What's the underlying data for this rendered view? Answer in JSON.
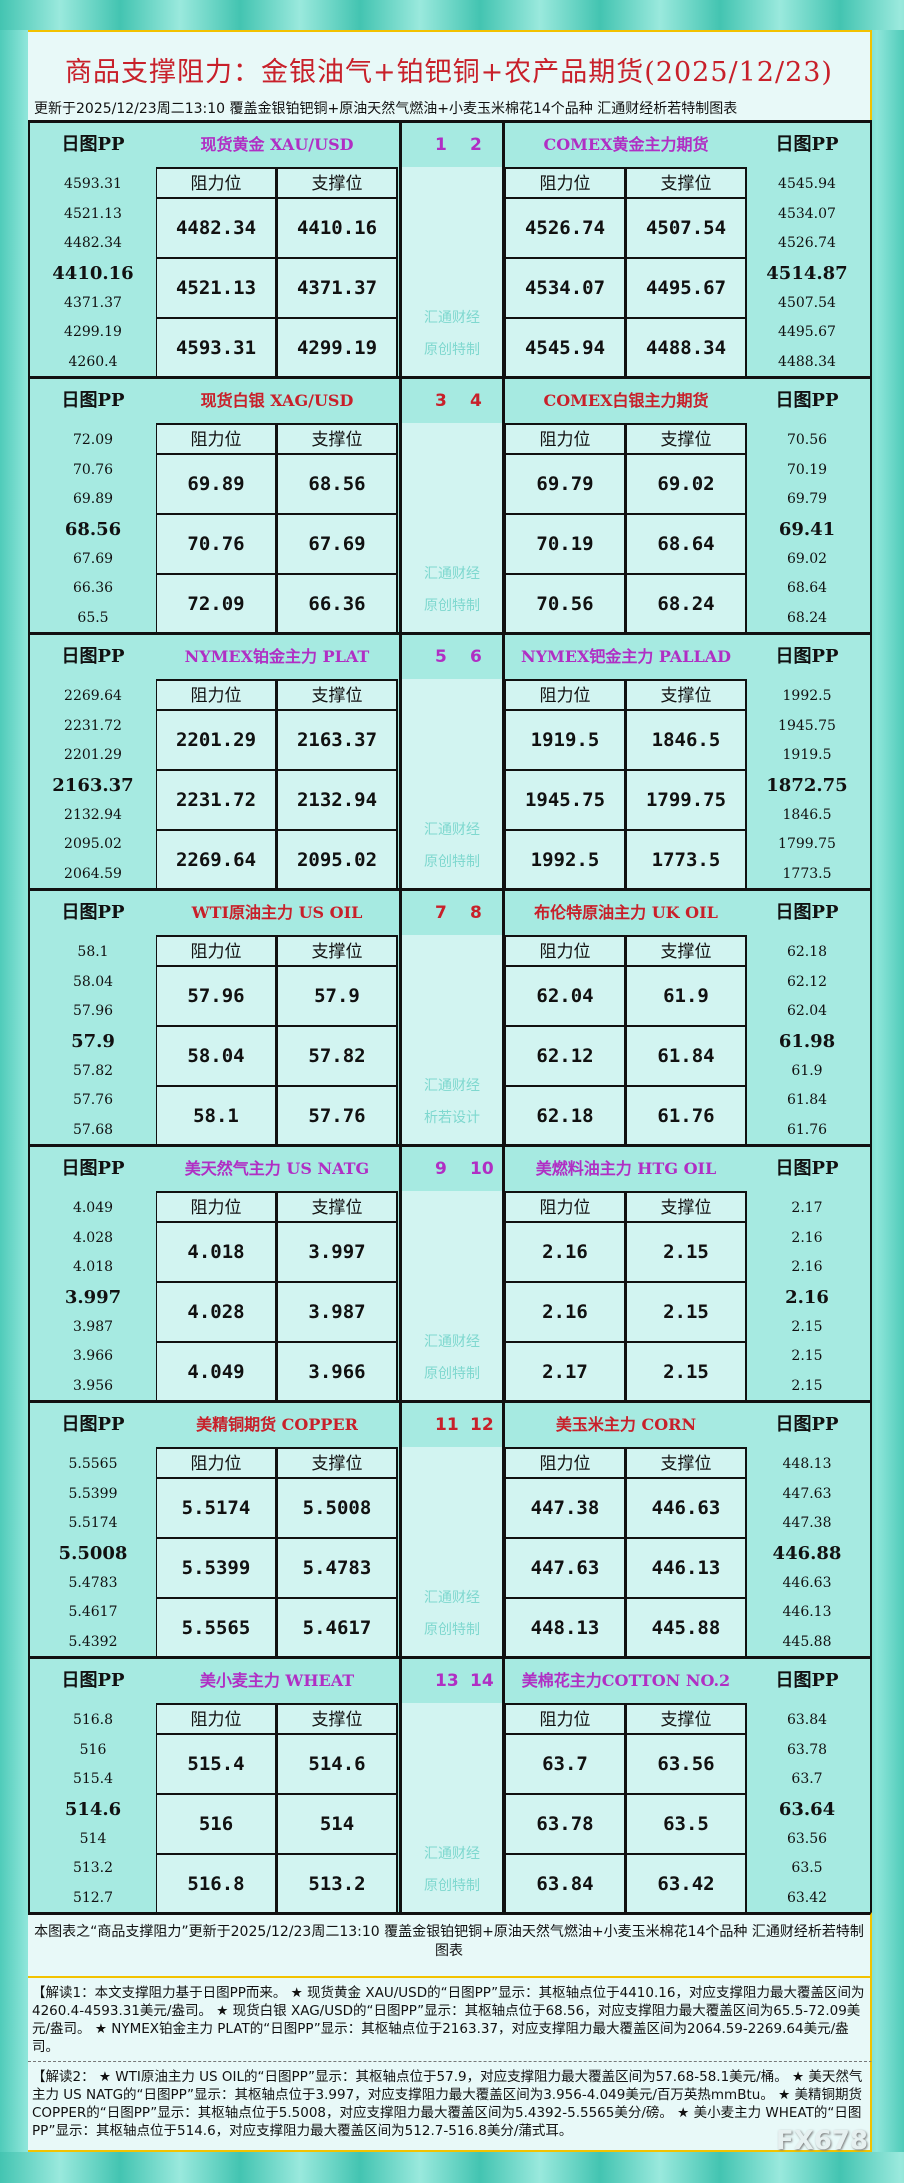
{
  "header": {
    "title": "商品支撑阻力：金银油气+铂钯铜+农产品期货(2025/12/23)",
    "subtitle": "更新于2025/12/23周二13:10 覆盖金银铂钯铜+原油天然气燃油+小麦玉米棉花14个品种 汇通财经析若特制图表"
  },
  "labels": {
    "pp": "日图PP",
    "resist": "阻力位",
    "support": "支撑位"
  },
  "colors": {
    "purple": "#b02fc4",
    "red": "#c8202a"
  },
  "sections": [
    {
      "watermark": [
        "汇通财经",
        "原创特制"
      ],
      "left": {
        "no": "1",
        "name": "现货黄金 XAU/USD",
        "color": "purple",
        "pp": [
          "4593.31",
          "4521.13",
          "4482.34",
          "4410.16",
          "4371.37",
          "4299.19",
          "4260.4"
        ],
        "resist": [
          "4482.34",
          "4521.13",
          "4593.31"
        ],
        "support": [
          "4410.16",
          "4371.37",
          "4299.19"
        ]
      },
      "right": {
        "no": "2",
        "name": "COMEX黄金主力期货",
        "color": "purple",
        "pp": [
          "4545.94",
          "4534.07",
          "4526.74",
          "4514.87",
          "4507.54",
          "4495.67",
          "4488.34"
        ],
        "resist": [
          "4526.74",
          "4534.07",
          "4545.94"
        ],
        "support": [
          "4507.54",
          "4495.67",
          "4488.34"
        ]
      }
    },
    {
      "watermark": [
        "汇通财经",
        "原创特制"
      ],
      "left": {
        "no": "3",
        "name": "现货白银 XAG/USD",
        "color": "red",
        "pp": [
          "72.09",
          "70.76",
          "69.89",
          "68.56",
          "67.69",
          "66.36",
          "65.5"
        ],
        "resist": [
          "69.89",
          "70.76",
          "72.09"
        ],
        "support": [
          "68.56",
          "67.69",
          "66.36"
        ]
      },
      "right": {
        "no": "4",
        "name": "COMEX白银主力期货",
        "color": "red",
        "pp": [
          "70.56",
          "70.19",
          "69.79",
          "69.41",
          "69.02",
          "68.64",
          "68.24"
        ],
        "resist": [
          "69.79",
          "70.19",
          "70.56"
        ],
        "support": [
          "69.02",
          "68.64",
          "68.24"
        ]
      }
    },
    {
      "watermark": [
        "汇通财经",
        "原创特制"
      ],
      "left": {
        "no": "5",
        "name": "NYMEX铂金主力 PLAT",
        "color": "purple",
        "pp": [
          "2269.64",
          "2231.72",
          "2201.29",
          "2163.37",
          "2132.94",
          "2095.02",
          "2064.59"
        ],
        "resist": [
          "2201.29",
          "2231.72",
          "2269.64"
        ],
        "support": [
          "2163.37",
          "2132.94",
          "2095.02"
        ]
      },
      "right": {
        "no": "6",
        "name": "NYMEX钯金主力 PALLAD",
        "color": "purple",
        "pp": [
          "1992.5",
          "1945.75",
          "1919.5",
          "1872.75",
          "1846.5",
          "1799.75",
          "1773.5"
        ],
        "resist": [
          "1919.5",
          "1945.75",
          "1992.5"
        ],
        "support": [
          "1846.5",
          "1799.75",
          "1773.5"
        ]
      }
    },
    {
      "watermark": [
        "汇通财经",
        "析若设计"
      ],
      "left": {
        "no": "7",
        "name": "WTI原油主力 US OIL",
        "color": "red",
        "pp": [
          "58.1",
          "58.04",
          "57.96",
          "57.9",
          "57.82",
          "57.76",
          "57.68"
        ],
        "resist": [
          "57.96",
          "58.04",
          "58.1"
        ],
        "support": [
          "57.9",
          "57.82",
          "57.76"
        ]
      },
      "right": {
        "no": "8",
        "name": "布伦特原油主力 UK OIL",
        "color": "red",
        "pp": [
          "62.18",
          "62.12",
          "62.04",
          "61.98",
          "61.9",
          "61.84",
          "61.76"
        ],
        "resist": [
          "62.04",
          "62.12",
          "62.18"
        ],
        "support": [
          "61.9",
          "61.84",
          "61.76"
        ]
      }
    },
    {
      "watermark": [
        "汇通财经",
        "原创特制"
      ],
      "left": {
        "no": "9",
        "name": "美天然气主力 US NATG",
        "color": "purple",
        "pp": [
          "4.049",
          "4.028",
          "4.018",
          "3.997",
          "3.987",
          "3.966",
          "3.956"
        ],
        "resist": [
          "4.018",
          "4.028",
          "4.049"
        ],
        "support": [
          "3.997",
          "3.987",
          "3.966"
        ]
      },
      "right": {
        "no": "10",
        "name": "美燃料油主力 HTG OIL",
        "color": "purple",
        "pp": [
          "2.17",
          "2.16",
          "2.16",
          "2.16",
          "2.15",
          "2.15",
          "2.15"
        ],
        "resist": [
          "2.16",
          "2.16",
          "2.17"
        ],
        "support": [
          "2.15",
          "2.15",
          "2.15"
        ]
      }
    },
    {
      "watermark": [
        "汇通财经",
        "原创特制"
      ],
      "left": {
        "no": "11",
        "name": "美精铜期货 COPPER",
        "color": "red",
        "pp": [
          "5.5565",
          "5.5399",
          "5.5174",
          "5.5008",
          "5.4783",
          "5.4617",
          "5.4392"
        ],
        "resist": [
          "5.5174",
          "5.5399",
          "5.5565"
        ],
        "support": [
          "5.5008",
          "5.4783",
          "5.4617"
        ]
      },
      "right": {
        "no": "12",
        "name": "美玉米主力 CORN",
        "color": "red",
        "pp": [
          "448.13",
          "447.63",
          "447.38",
          "446.88",
          "446.63",
          "446.13",
          "445.88"
        ],
        "resist": [
          "447.38",
          "447.63",
          "448.13"
        ],
        "support": [
          "446.63",
          "446.13",
          "445.88"
        ]
      }
    },
    {
      "watermark": [
        "汇通财经",
        "原创特制"
      ],
      "left": {
        "no": "13",
        "name": "美小麦主力 WHEAT",
        "color": "purple",
        "pp": [
          "516.8",
          "516",
          "515.4",
          "514.6",
          "514",
          "513.2",
          "512.7"
        ],
        "resist": [
          "515.4",
          "516",
          "516.8"
        ],
        "support": [
          "514.6",
          "514",
          "513.2"
        ]
      },
      "right": {
        "no": "14",
        "name": "美棉花主力COTTON NO.2",
        "color": "purple",
        "pp": [
          "63.84",
          "63.78",
          "63.7",
          "63.64",
          "63.56",
          "63.5",
          "63.42"
        ],
        "resist": [
          "63.7",
          "63.78",
          "63.84"
        ],
        "support": [
          "63.56",
          "63.5",
          "63.42"
        ]
      }
    }
  ],
  "note": "本图表之“商品支撑阻力”更新于2025/12/23周二13:10 覆盖金银铂钯铜+原油天然气燃油+小麦玉米棉花14个品种 汇通财经析若特制图表",
  "explain1": "【解读1：本文支撑阻力基于日图PP而来。 ★ 现货黄金 XAU/USD的“日图PP”显示：其枢轴点位于4410.16，对应支撑阻力最大覆盖区间为4260.4-4593.31美元/盎司。 ★ 现货白银 XAG/USD的“日图PP”显示：其枢轴点位于68.56，对应支撑阻力最大覆盖区间为65.5-72.09美元/盎司。 ★ NYMEX铂金主力 PLAT的“日图PP”显示：其枢轴点位于2163.37，对应支撑阻力最大覆盖区间为2064.59-2269.64美元/盎司。",
  "explain2": "【解读2： ★ WTI原油主力 US OIL的“日图PP”显示：其枢轴点位于57.9，对应支撑阻力最大覆盖区间为57.68-58.1美元/桶。 ★ 美天然气主力 US NATG的“日图PP”显示：其枢轴点位于3.997，对应支撑阻力最大覆盖区间为3.956-4.049美元/百万英热mmBtu。 ★ 美精铜期货 COPPER的“日图PP”显示：其枢轴点位于5.5008，对应支撑阻力最大覆盖区间为5.4392-5.5565美分/磅。 ★ 美小麦主力 WHEAT的“日图PP”显示：其枢轴点位于514.6，对应支撑阻力最大覆盖区间为512.7-516.8美分/蒲式耳。",
  "logo": "FX678"
}
